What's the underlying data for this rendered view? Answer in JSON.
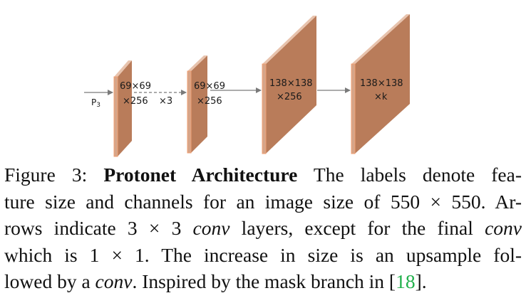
{
  "figure": {
    "input_label": "P",
    "input_subscript": "3",
    "repeat_label": "×3",
    "blocks": [
      {
        "line1": "69×69",
        "line2": "×256"
      },
      {
        "line1": "69×69",
        "line2": "×256"
      },
      {
        "line1": "138×138",
        "line2": "×256"
      },
      {
        "line1": "138×138",
        "line2": "×k"
      }
    ],
    "colors": {
      "face": "#d6a589",
      "side": "#b97c5a",
      "top": "#e8c3ad",
      "edge": "#f0a074",
      "arrow": "#7a7a7a"
    }
  },
  "caption": {
    "figure_label": "Figure 3:",
    "title": "Protonet Architecture",
    "seg1": "The labels denote fea-",
    "seg2": "ture size and channels for an image size of 550 × 550. Ar-",
    "seg3a": "rows indicate 3 × 3 ",
    "seg3b": "conv",
    "seg3c": " layers, except for the final ",
    "seg3d": "conv",
    "seg4": "which is 1 × 1.  The increase in size is an upsample fol-",
    "seg5a": "lowed by a ",
    "seg5b": "conv",
    "seg5c": ". Inspired by the mask branch in [",
    "seg5d": "18",
    "seg5e": "]."
  }
}
